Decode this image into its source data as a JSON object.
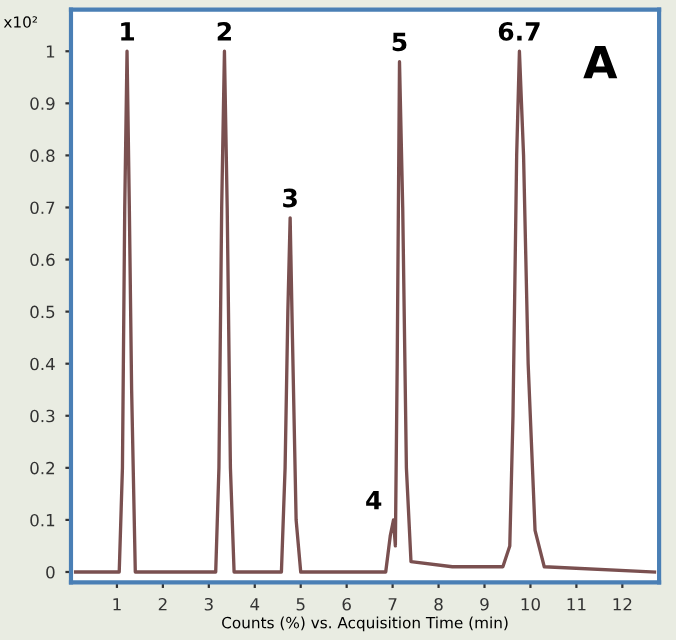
{
  "chart_data": {
    "type": "line",
    "xlabel": "Counts (%) vs. Acquisition Time (min)",
    "series": [
      {
        "color": "#7a5050",
        "x": [
          0.1,
          1.05,
          1.12,
          1.17,
          1.22,
          1.27,
          1.32,
          1.4,
          3.15,
          3.22,
          3.28,
          3.34,
          3.4,
          3.47,
          3.55,
          4.58,
          4.66,
          4.72,
          4.77,
          4.82,
          4.9,
          5.0,
          6.85,
          6.95,
          7.02,
          7.06,
          7.1,
          7.15,
          7.22,
          7.3,
          7.4,
          8.3,
          9.4,
          9.55,
          9.62,
          9.7,
          9.76,
          9.85,
          9.95,
          10.1,
          10.3,
          12.7
        ],
        "values": [
          0,
          0,
          0.2,
          0.7,
          1.0,
          0.7,
          0.35,
          0,
          0,
          0.2,
          0.7,
          1.0,
          0.7,
          0.2,
          0,
          0,
          0.2,
          0.5,
          0.68,
          0.45,
          0.1,
          0,
          0,
          0.07,
          0.1,
          0.05,
          0.4,
          0.98,
          0.7,
          0.2,
          0.02,
          0.01,
          0.01,
          0.05,
          0.3,
          0.8,
          1.0,
          0.8,
          0.4,
          0.08,
          0.01,
          0
        ]
      }
    ],
    "annotations": [
      "x10²",
      "A",
      {
        "text": "1",
        "x": 1.22,
        "y": 1.0
      },
      {
        "text": "2",
        "x": 3.34,
        "y": 1.0
      },
      {
        "text": "3",
        "x": 4.77,
        "y": 0.68
      },
      {
        "text": "4",
        "x": 7.02,
        "y": 0.1
      },
      {
        "text": "5",
        "x": 7.15,
        "y": 0.98
      },
      {
        "text": "6.7",
        "x": 9.76,
        "y": 1.0
      }
    ],
    "xlim": [
      0,
      12.8
    ],
    "ylim": [
      -0.02,
      1.08
    ],
    "xticks": [
      1,
      2,
      3,
      4,
      5,
      6,
      7,
      8,
      9,
      10,
      11,
      12
    ],
    "yticks": [
      0,
      0.1,
      0.2,
      0.3,
      0.4,
      0.5,
      0.6,
      0.7,
      0.8,
      0.9,
      1
    ],
    "grid": false,
    "legend": false,
    "marker": "none",
    "line_style": "solid"
  }
}
